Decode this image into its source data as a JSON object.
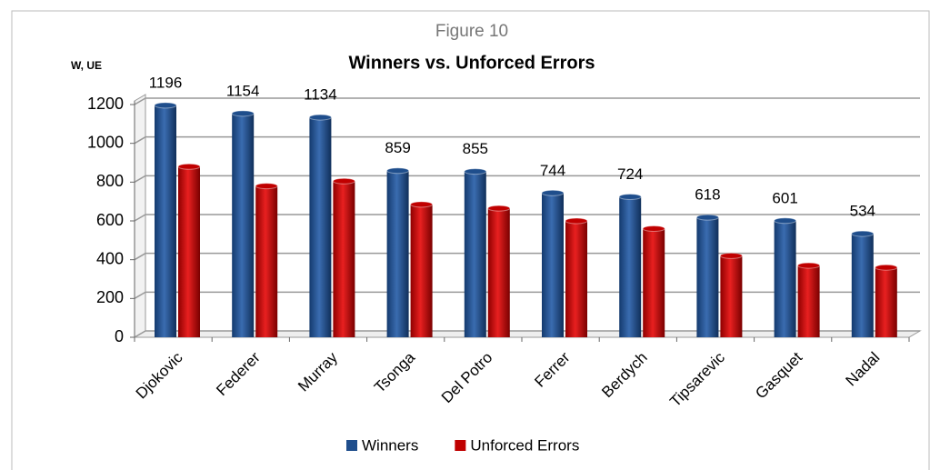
{
  "chart_data": {
    "type": "bar",
    "figure_label": "Figure 10",
    "title": "Winners vs. Unforced Errors",
    "y_label": "W, UE",
    "categories": [
      "Djokovic",
      "Federer",
      "Murray",
      "Tsonga",
      "Del Potro",
      "Ferrer",
      "Berdych",
      "Tipsarevic",
      "Gasquet",
      "Nadal"
    ],
    "series": [
      {
        "name": "Winners",
        "color": "#1f4e8c",
        "values": [
          1196,
          1154,
          1134,
          859,
          855,
          744,
          724,
          618,
          601,
          534
        ]
      },
      {
        "name": "Unforced Errors",
        "color": "#c00000",
        "values": [
          880,
          780,
          805,
          685,
          665,
          600,
          560,
          420,
          370,
          360
        ]
      }
    ],
    "value_labels_series": 0,
    "ylim": [
      0,
      1200
    ],
    "yticks": [
      0,
      200,
      400,
      600,
      800,
      1000,
      1200
    ],
    "grid": true,
    "legend": "bottom"
  }
}
